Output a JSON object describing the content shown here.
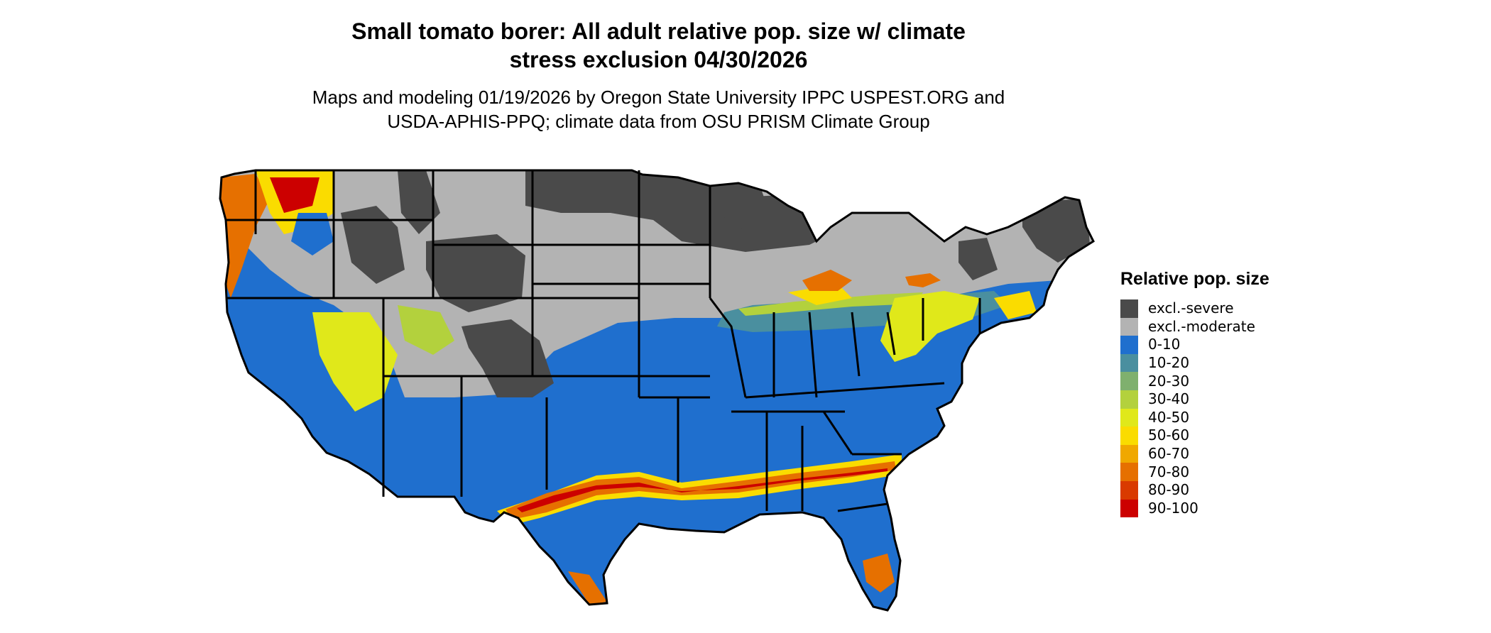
{
  "header": {
    "title_line1": "Small tomato borer: All adult relative pop. size w/ climate",
    "title_line2": "stress exclusion 04/30/2026",
    "subtitle_line1": "Maps and modeling 01/19/2026 by Oregon State University IPPC USPEST.ORG and",
    "subtitle_line2": "USDA-APHIS-PPQ; climate data from OSU PRISM Climate Group"
  },
  "legend": {
    "title": "Relative pop. size",
    "items": [
      {
        "label": "excl.-severe",
        "color": "#4a4a4a"
      },
      {
        "label": "excl.-moderate",
        "color": "#b3b3b3"
      },
      {
        "label": "0-10",
        "color": "#1f6fce"
      },
      {
        "label": "10-20",
        "color": "#4a8f9f"
      },
      {
        "label": "20-30",
        "color": "#7fb06e"
      },
      {
        "label": "30-40",
        "color": "#b3d13d"
      },
      {
        "label": "40-50",
        "color": "#e0e81a"
      },
      {
        "label": "50-60",
        "color": "#fadc00"
      },
      {
        "label": "60-70",
        "color": "#f0a800"
      },
      {
        "label": "70-80",
        "color": "#e67000"
      },
      {
        "label": "80-90",
        "color": "#d93a00"
      },
      {
        "label": "90-100",
        "color": "#cc0000"
      }
    ]
  }
}
